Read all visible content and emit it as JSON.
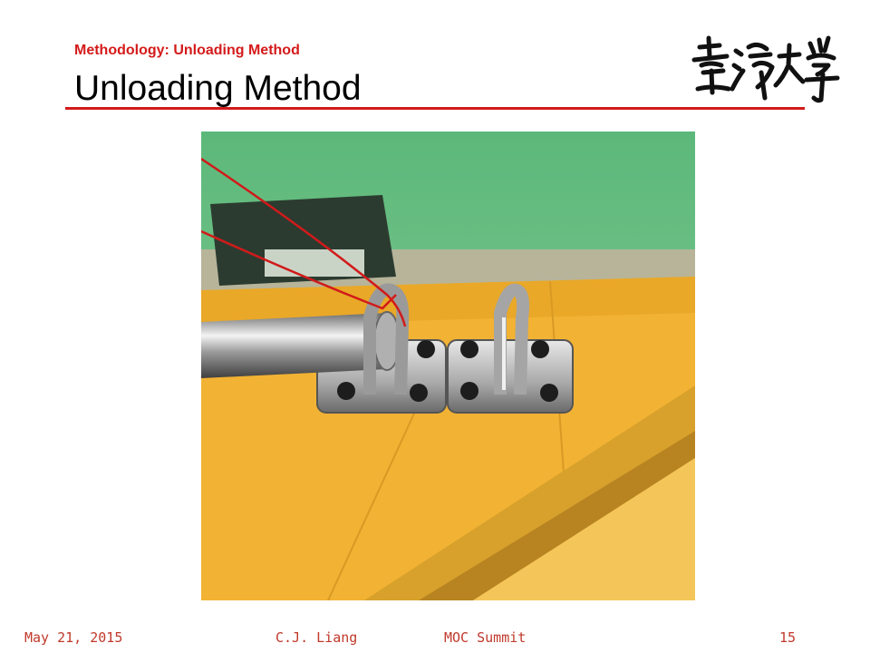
{
  "slide": {
    "subtitle": "Methodology: Unloading Method",
    "title": "Unloading Method"
  },
  "logo": {
    "text": "臺灣大學"
  },
  "photo": {
    "subject": "steel-rod-through-pad-eye-hooks-on-yellow-board"
  },
  "footer": {
    "date": "May 21, 2015",
    "author": "C.J. Liang",
    "event": "MOC Summit",
    "page": "15"
  },
  "colors": {
    "accent": "#d41a1a",
    "footer_text": "#c0392b",
    "board_yellow": "#f2b233",
    "background_green": "#6bbf7e"
  }
}
